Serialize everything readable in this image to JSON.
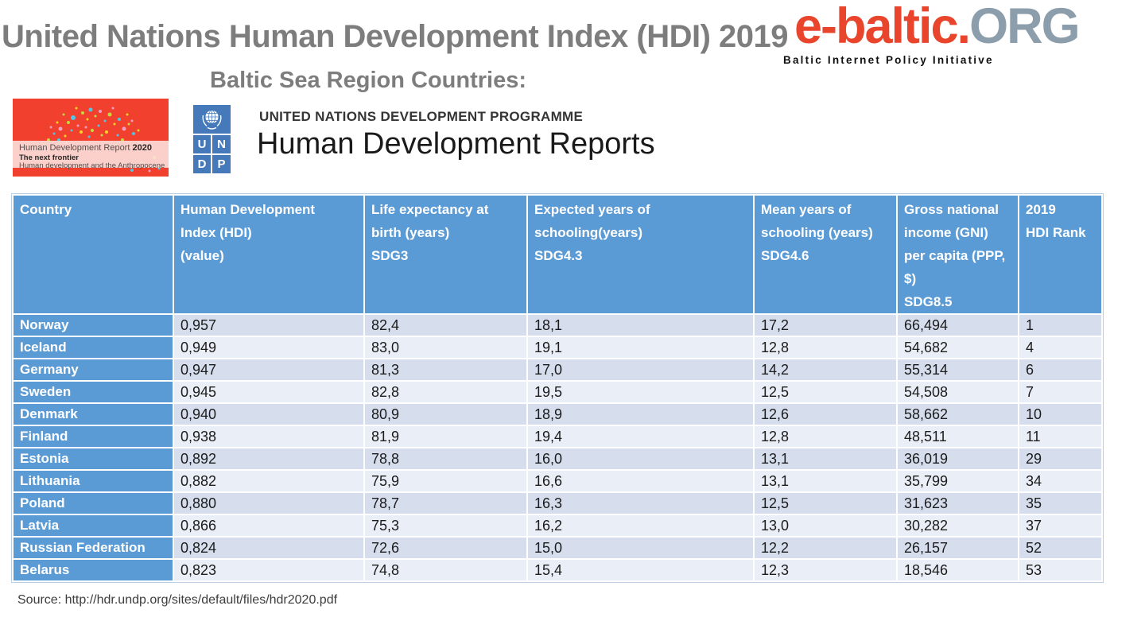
{
  "page": {
    "title": "United Nations Human Development Index (HDI) 2019",
    "subtitle": "Baltic Sea Region Countries:",
    "source": "Source: http://hdr.undp.org/sites/default/files/hdr2020.pdf",
    "title_color": "#7d7d7d"
  },
  "brand": {
    "wordmark_red": "e-baltic.",
    "wordmark_gray": "ORG",
    "tagline": "Baltic Internet Policy Initiative",
    "red": "#e8452c",
    "gray": "#8c9eac"
  },
  "undp": {
    "programme": "UNITED NATIONS DEVELOPMENT PROGRAMME",
    "reports_title": "Human Development Reports",
    "logo_letters": [
      "U",
      "N",
      "D",
      "P"
    ],
    "logo_blue": "#4579ba"
  },
  "report_cover": {
    "title_regular": "Human Development Report ",
    "title_bold": "2020",
    "line2": "The next frontier",
    "line3": "Human development and the Anthropocene",
    "red": "#f2402f"
  },
  "table": {
    "header_blue": "#5b9bd5",
    "band_dark": "#d6deee",
    "band_light": "#eaeef7",
    "columns": [
      {
        "lines": [
          "Country"
        ]
      },
      {
        "lines": [
          "Human Development",
          "Index (HDI)",
          "(value)"
        ]
      },
      {
        "lines": [
          "Life expectancy at",
          "birth (years)",
          "SDG3"
        ]
      },
      {
        "lines": [
          "Expected years of",
          "schooling(years)",
          "SDG4.3"
        ]
      },
      {
        "lines": [
          "Mean years of",
          "schooling (years)",
          "SDG4.6"
        ]
      },
      {
        "lines": [
          "Gross national",
          "income (GNI)",
          "per capita (PPP,",
          "$)",
          "SDG8.5"
        ]
      },
      {
        "lines": [
          "2019",
          "HDI Rank"
        ]
      }
    ],
    "rows": [
      {
        "country": "Norway",
        "values": [
          "0,957",
          "82,4",
          "18,1",
          "17,2",
          "66,494",
          "1"
        ]
      },
      {
        "country": "Iceland",
        "values": [
          "0,949",
          "83,0",
          "19,1",
          "12,8",
          "54,682",
          "4"
        ]
      },
      {
        "country": "Germany",
        "values": [
          "0,947",
          "81,3",
          "17,0",
          "14,2",
          "55,314",
          "6"
        ]
      },
      {
        "country": "Sweden",
        "values": [
          "0,945",
          "82,8",
          "19,5",
          "12,5",
          "54,508",
          "7"
        ]
      },
      {
        "country": "Denmark",
        "values": [
          "0,940",
          "80,9",
          "18,9",
          "12,6",
          "58,662",
          "10"
        ]
      },
      {
        "country": "Finland",
        "values": [
          "0,938",
          "81,9",
          "19,4",
          "12,8",
          "48,511",
          "11"
        ]
      },
      {
        "country": "Estonia",
        "values": [
          "0,892",
          "78,8",
          "16,0",
          "13,1",
          "36,019",
          "29"
        ]
      },
      {
        "country": "Lithuania",
        "values": [
          "0,882",
          "75,9",
          "16,6",
          "13,1",
          "35,799",
          "34"
        ]
      },
      {
        "country": "Poland",
        "values": [
          "0,880",
          "78,7",
          "16,3",
          "12,5",
          "31,623",
          "35"
        ]
      },
      {
        "country": "Latvia",
        "values": [
          "0,866",
          "75,3",
          "16,2",
          "13,0",
          "30,282",
          "37"
        ]
      },
      {
        "country": "Russian Federation",
        "values": [
          "0,824",
          "72,6",
          "15,0",
          "12,2",
          "26,157",
          "52"
        ]
      },
      {
        "country": "Belarus",
        "values": [
          "0,823",
          "74,8",
          "15,4",
          "12,3",
          "18,546",
          "53"
        ]
      }
    ]
  }
}
